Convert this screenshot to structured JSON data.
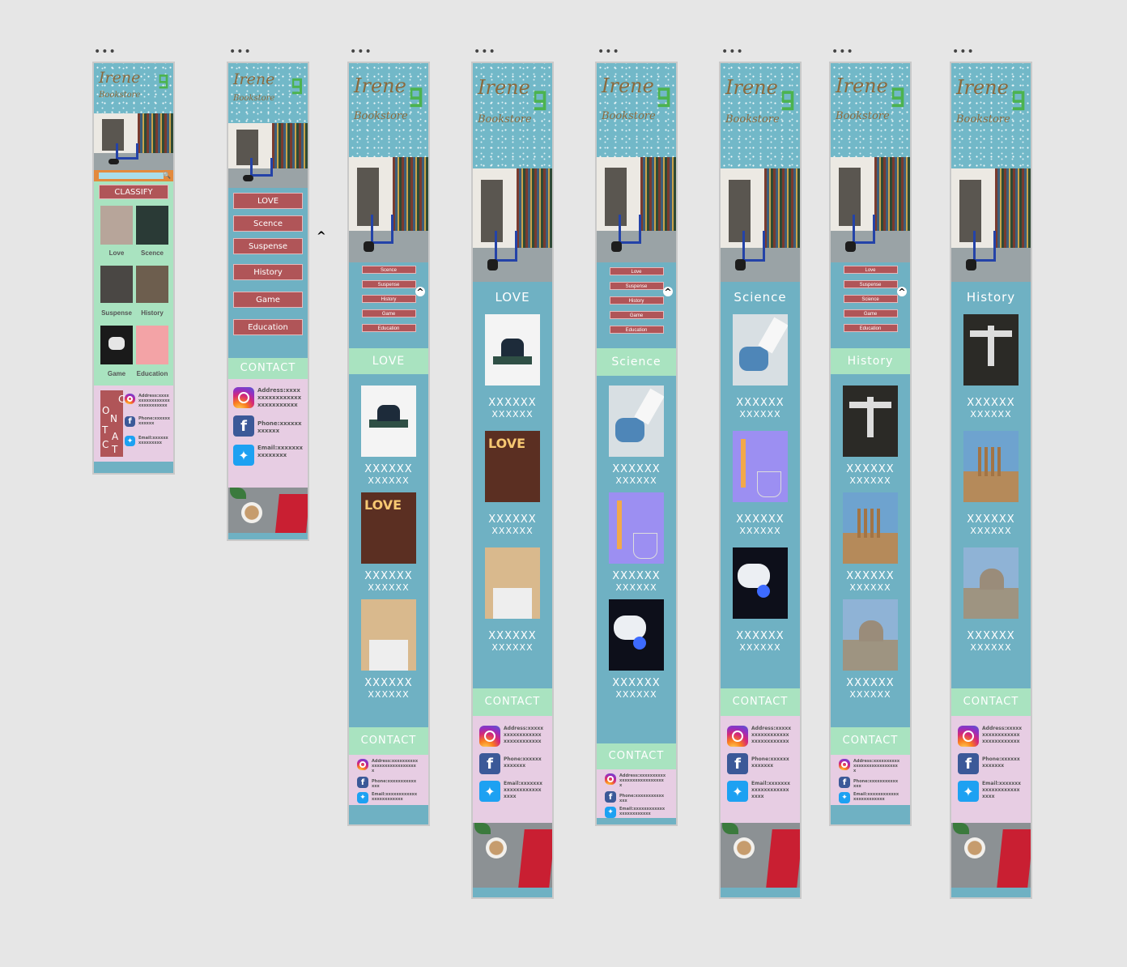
{
  "brand": {
    "name": "Irene",
    "sub": "Bookstore"
  },
  "menu_dots": "•••",
  "classify_label": "CLASSIFY",
  "contact_label": "CONTACT",
  "contact_vertical": [
    "C",
    "O",
    "N",
    "T",
    "A",
    "C",
    "T"
  ],
  "contact_vertical_label": "CONTACT",
  "categories": [
    "Love",
    "Scence",
    "Suspense",
    "History",
    "Game",
    "Education"
  ],
  "menu_buttons": [
    "LOVE",
    "Scence",
    "Suspense",
    "History",
    "Game",
    "Education"
  ],
  "contact": {
    "address": "Address:xxxxxxxxxxxxxxxxxxxxxxxxxxx",
    "phone": "Phone:xxxxxxxxxxxx",
    "email": "Email:xxxxxxxxxxxxxxx"
  },
  "contact_small": {
    "address": "Address:xxxxxxxxxxxxxxxxxxxxxxxxxxxx",
    "phone": "Phone:xxxxxxxxxxxxxx",
    "email": "Email:xxxxxxxxxxxxxxxxxxxxxxxx"
  },
  "contact_mid": {
    "address": "Address:xxxxxxxxxxxxxxxxxxxxxxxxxxxxx",
    "phone": "Phone:xxxxxxxxxxxxx",
    "email": "Email:xxxxxxxxxxxxxxxxxxxxxxx"
  },
  "placeholder_title": "XXXXXX",
  "placeholder_sub": "XXXXXX",
  "caret_symbol": "^",
  "frames": {
    "f3": {
      "title": "LOVE",
      "menu": [
        "Scence",
        "Suspense",
        "History",
        "Game",
        "Education"
      ]
    },
    "f4": {
      "title": "LOVE"
    },
    "f5": {
      "title": "Science",
      "menu": [
        "Love",
        "Suspense",
        "History",
        "Game",
        "Education"
      ]
    },
    "f6": {
      "title": "Science"
    },
    "f7": {
      "title": "History",
      "menu": [
        "Love",
        "Suspense",
        "Science",
        "Game",
        "Education"
      ]
    },
    "f8": {
      "title": "History"
    }
  },
  "colors": {
    "accent_red": "#b05558",
    "mint": "#a9e3c0",
    "teal": "#6fb1c3",
    "pink": "#e7cde3"
  }
}
